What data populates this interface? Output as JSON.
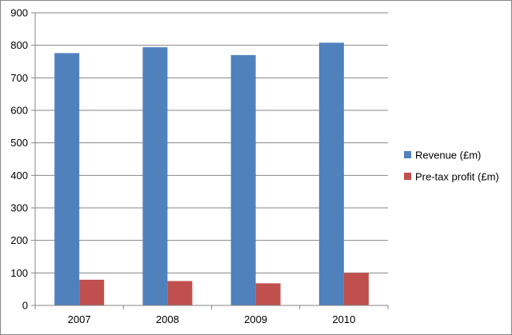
{
  "chart_data": {
    "type": "bar",
    "title": "",
    "xlabel": "",
    "ylabel": "",
    "categories": [
      "2007",
      "2008",
      "2009",
      "2010"
    ],
    "series": [
      {
        "name": "Revenue (£m)",
        "color": "#4F81BD",
        "values": [
          776,
          794,
          770,
          808
        ]
      },
      {
        "name": "Pre-tax profit (£m)",
        "color": "#C0504D",
        "values": [
          79,
          75,
          68,
          100
        ]
      }
    ],
    "ylim": [
      0,
      900
    ],
    "yticks": [
      0,
      100,
      200,
      300,
      400,
      500,
      600,
      700,
      800,
      900
    ],
    "grid": true,
    "legend_position": "right"
  }
}
